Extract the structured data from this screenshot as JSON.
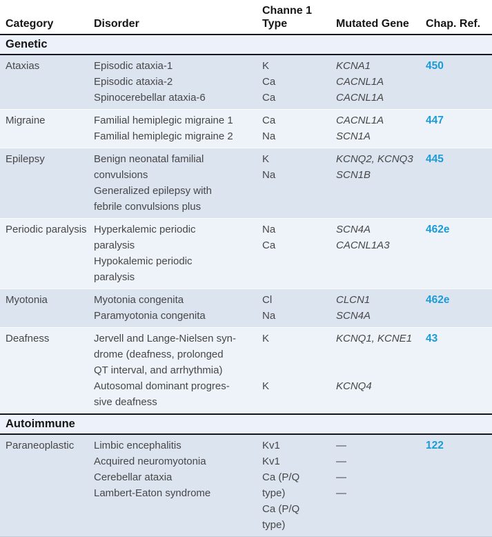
{
  "colors": {
    "accent_link_blue": "#1b9bd7",
    "row_shade_dark": "#dce4f0",
    "row_shade_light": "#edf3f9",
    "section_band_bg": "#edf2fa",
    "rule_black": "#15151f",
    "body_text": "#474747"
  },
  "table": {
    "columns": {
      "category": "Category",
      "disorder": "Disorder",
      "channel_line1": "Channe 1",
      "channel_line2": "Type",
      "gene": "Mutated Gene",
      "chap": "Chap. Ref."
    },
    "sections": [
      {
        "label": "Genetic",
        "groups": [
          {
            "category": "Ataxias",
            "shade": "dark",
            "disorder_lines": [
              "Episodic ataxia-1",
              "Episodic ataxia-2",
              "Spinocerebellar ataxia-6"
            ],
            "channel_lines": [
              "K",
              "Ca",
              "Ca"
            ],
            "gene_lines": [
              "KCNA1",
              "CACNL1A",
              "CACNL1A"
            ],
            "chap": "450"
          },
          {
            "category": "Migraine",
            "shade": "light",
            "disorder_lines": [
              "Familial hemiplegic migraine 1",
              "Familial hemiplegic migraine 2"
            ],
            "channel_lines": [
              "Ca",
              "Na"
            ],
            "gene_lines": [
              "CACNL1A",
              "SCN1A"
            ],
            "chap": "447"
          },
          {
            "category": "Epilepsy",
            "shade": "dark",
            "disorder_lines": [
              "Benign neonatal familial",
              "convulsions",
              "Generalized epilepsy with",
              "febrile convulsions plus"
            ],
            "channel_lines": [
              "K",
              "Na"
            ],
            "gene_lines": [
              "KCNQ2, KCNQ3",
              "SCN1B"
            ],
            "chap": "445"
          },
          {
            "category": "Periodic paralysis",
            "shade": "light",
            "disorder_lines": [
              "Hyperkalemic periodic",
              "paralysis",
              "Hypokalemic periodic",
              "paralysis"
            ],
            "channel_lines": [
              "Na",
              "Ca"
            ],
            "gene_lines": [
              "SCN4A",
              "CACNL1A3"
            ],
            "chap": "462e"
          },
          {
            "category": "Myotonia",
            "shade": "dark",
            "disorder_lines": [
              "Myotonia congenita",
              "Paramyotonia congenita"
            ],
            "channel_lines": [
              "Cl",
              "Na"
            ],
            "gene_lines": [
              "CLCN1",
              "SCN4A"
            ],
            "chap": "462e"
          },
          {
            "category": "Deafness",
            "shade": "light",
            "disorder_lines": [
              "Jervell and Lange-Nielsen syn-",
              "drome (deafness, prolonged",
              "QT interval, and arrhythmia)",
              "Autosomal dominant progres-",
              "sive deafness"
            ],
            "channel_lines": [
              "K",
              "",
              "",
              "K"
            ],
            "gene_lines": [
              "KCNQ1, KCNE1",
              "",
              "",
              "KCNQ4"
            ],
            "chap": "43"
          }
        ]
      },
      {
        "label": "Autoimmune",
        "groups": [
          {
            "category": "Paraneoplastic",
            "shade": "dark",
            "disorder_lines": [
              "Limbic encephalitis",
              "Acquired neuromyotonia",
              "Cerebellar ataxia",
              "Lambert-Eaton syndrome"
            ],
            "channel_lines": [
              "Kv1",
              "Kv1",
              "Ca (P/Q",
              "type)",
              "Ca (P/Q",
              "type)"
            ],
            "gene_lines": [
              "—",
              "—",
              "—",
              "—"
            ],
            "chap": "122"
          }
        ]
      }
    ]
  }
}
